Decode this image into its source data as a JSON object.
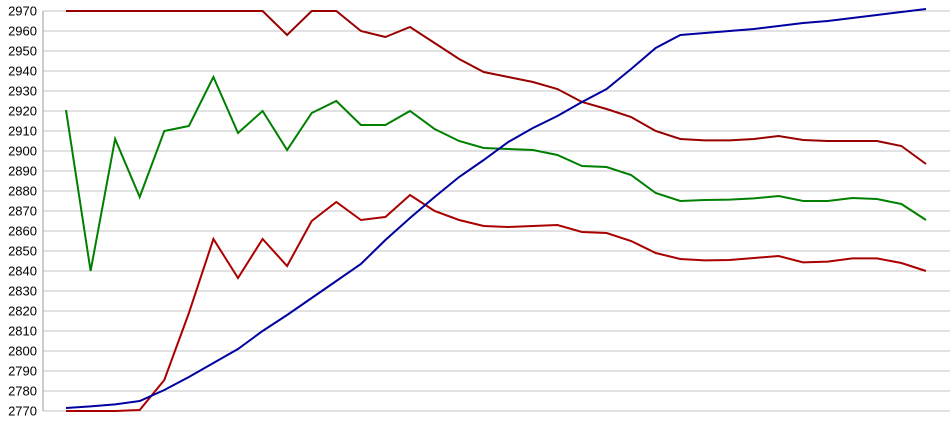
{
  "chart": {
    "background_color": "#ffffff",
    "grid_color": "#c6c6c6",
    "axis_color": "#999999",
    "label_color": "#000000"
  },
  "chart_data": {
    "type": "line",
    "title": "",
    "xlabel": "",
    "ylabel": "",
    "grid": true,
    "legend": "none",
    "ylim": [
      2770,
      2970
    ],
    "y_tick_step": 10,
    "y_ticks": [
      2970,
      2960,
      2950,
      2940,
      2930,
      2920,
      2910,
      2900,
      2890,
      2880,
      2870,
      2860,
      2850,
      2840,
      2830,
      2820,
      2810,
      2800,
      2790,
      2780,
      2770
    ],
    "x": [
      0,
      1,
      2,
      3,
      4,
      5,
      6,
      7,
      8,
      9,
      10,
      11,
      12,
      13,
      14,
      15,
      16,
      17,
      18,
      19,
      20,
      21,
      22,
      23,
      24,
      25,
      26,
      27,
      28,
      29,
      30,
      31,
      32,
      33,
      34,
      35
    ],
    "series": [
      {
        "name": "upper-red-line",
        "color": "#990000",
        "values": [
          2970,
          2970,
          2970,
          2970,
          2970,
          2970,
          2970,
          2970,
          2970,
          2958,
          2970,
          2970,
          2960,
          2957,
          2962,
          2954,
          2946,
          2939.5,
          2937,
          2934.5,
          2931,
          2924.5,
          2921,
          2917,
          2910,
          2906,
          2905.3,
          2905.3,
          2906,
          2907.5,
          2905.5,
          2905,
          2905,
          2905,
          2902.5,
          2893.5
        ]
      },
      {
        "name": "green-line",
        "color": "#008000",
        "values": [
          2920.5,
          2840,
          2906,
          2877,
          2910,
          2912.5,
          2937,
          2909,
          2920,
          2900.5,
          2919,
          2925,
          2913,
          2913,
          2920,
          2911,
          2905,
          2901.5,
          2901,
          2900.5,
          2898,
          2892.5,
          2892,
          2888,
          2879,
          2875,
          2875.5,
          2875.7,
          2876.3,
          2877.5,
          2875,
          2875,
          2876.5,
          2876,
          2873.5,
          2865.5
        ]
      },
      {
        "name": "lower-red-line",
        "color": "#aa0000",
        "values": [
          2770,
          2770,
          2770,
          2770.5,
          2785.5,
          2819,
          2856,
          2836.5,
          2856,
          2842.5,
          2865,
          2874.5,
          2865.5,
          2867,
          2878,
          2870,
          2865.5,
          2862.5,
          2862,
          2862.5,
          2863,
          2859.5,
          2859,
          2855,
          2849,
          2846,
          2845.3,
          2845.5,
          2846.5,
          2847.5,
          2844.3,
          2844.7,
          2846.3,
          2846.3,
          2844,
          2840
        ]
      },
      {
        "name": "blue-line",
        "color": "#0000a0",
        "values": [
          2771.5,
          2772.3,
          2773.3,
          2775,
          2780.5,
          2787,
          2794,
          2801,
          2810,
          2818,
          2826.5,
          2835,
          2843.5,
          2855.5,
          2866.5,
          2877,
          2887,
          2895.5,
          2904.5,
          2911.5,
          2917.5,
          2924.5,
          2931,
          2941,
          2951.5,
          2958,
          2959,
          2960,
          2961,
          2962.5,
          2964,
          2965,
          2966.5,
          2968,
          2969.5,
          2971
        ]
      }
    ]
  }
}
